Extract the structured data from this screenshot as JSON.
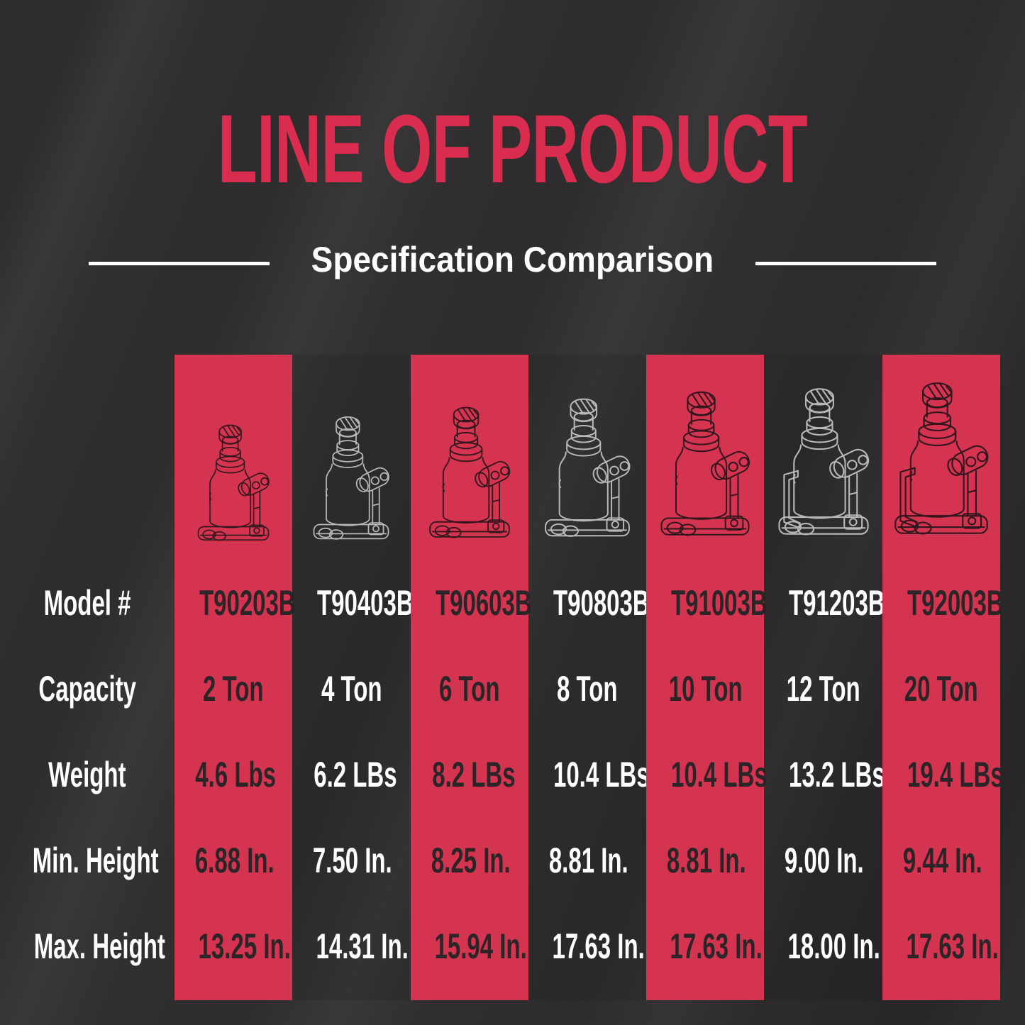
{
  "title": "LINE OF PRODUCT",
  "subtitle": "Specification Comparison",
  "colors": {
    "title_red": "#DA2C4F",
    "band_red": "#D53450",
    "background": "#2E2C2D",
    "text_light": "#FFFFFF",
    "text_dark": "#2B2527"
  },
  "table": {
    "row_labels": [
      "Model #",
      "Capacity",
      "Weight",
      "Min. Height",
      "Max. Height"
    ],
    "products": [
      {
        "model": "T90203B",
        "capacity": "2 Ton",
        "weight": "4.6 Lbs",
        "min_height": "6.88 In.",
        "max_height": "13.25 In.",
        "banded": true
      },
      {
        "model": "T90403B",
        "capacity": "4 Ton",
        "weight": "6.2 LBs",
        "min_height": "7.50 In.",
        "max_height": "14.31 In.",
        "banded": false
      },
      {
        "model": "T90603B",
        "capacity": "6 Ton",
        "weight": "8.2 LBs",
        "min_height": "8.25 In.",
        "max_height": "15.94 In.",
        "banded": true
      },
      {
        "model": "T90803B",
        "capacity": "8 Ton",
        "weight": "10.4 LBs",
        "min_height": "8.81 In.",
        "max_height": "17.63 In.",
        "banded": false
      },
      {
        "model": "T91003B",
        "capacity": "10 Ton",
        "weight": "10.4 LBs",
        "min_height": "8.81 In.",
        "max_height": "17.63 In.",
        "banded": true
      },
      {
        "model": "T91203B",
        "capacity": "12 Ton",
        "weight": "13.2 LBs",
        "min_height": "9.00 In.",
        "max_height": "18.00 In.",
        "banded": false
      },
      {
        "model": "T92003B",
        "capacity": "20 Ton",
        "weight": "19.4 LBs",
        "min_height": "9.44 In.",
        "max_height": "17.63 In.",
        "banded": true
      }
    ]
  }
}
